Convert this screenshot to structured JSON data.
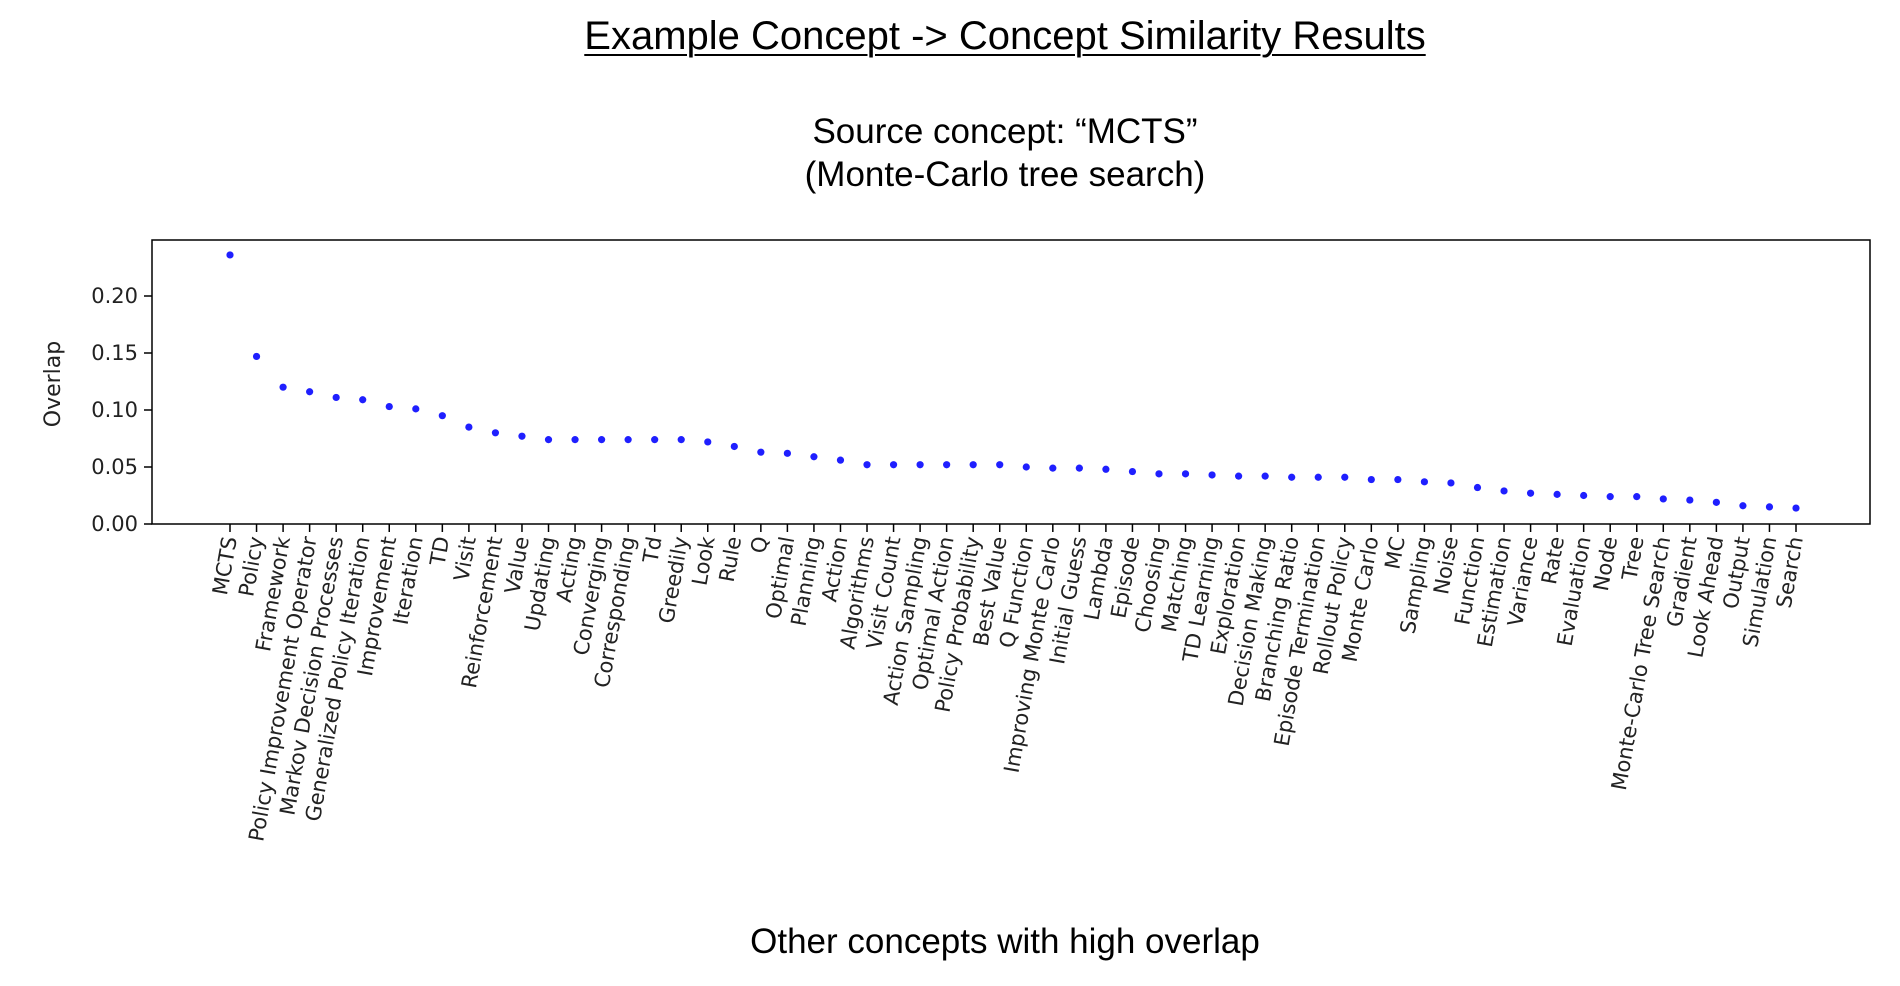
{
  "heading": {
    "title": "Example Concept -> Concept Similarity Results",
    "subtitle_line1": "Source concept: “MCTS”",
    "subtitle_line2": "(Monte-Carlo tree search)"
  },
  "colors": {
    "point": "#1f1fff",
    "axis": "#000000",
    "text": "#222222"
  },
  "chart_data": {
    "type": "scatter",
    "title": "Example Concept -> Concept Similarity Results",
    "subtitle": "Source concept: “MCTS” (Monte-Carlo tree search)",
    "xlabel": "Other concepts with high overlap",
    "ylabel": "Overlap",
    "ylim": [
      0,
      0.25
    ],
    "yticks": [
      0.0,
      0.05,
      0.1,
      0.15,
      0.2
    ],
    "ytick_labels": [
      "0.00",
      "0.05",
      "0.10",
      "0.15",
      "0.20"
    ],
    "grid": false,
    "categories": [
      "MCTS",
      "Policy",
      "Framework",
      "Policy Improvement Operator",
      "Markov Decision Processes",
      "Generalized Policy Iteration",
      "Improvement",
      "Iteration",
      "TD",
      "Visit",
      "Reinforcement",
      "Value",
      "Updating",
      "Acting",
      "Converging",
      "Corresponding",
      "Td",
      "Greedily",
      "Look",
      "Rule",
      "Q",
      "Optimal",
      "Planning",
      "Action",
      "Algorithms",
      "Visit Count",
      "Action Sampling",
      "Optimal Action",
      "Policy Probability",
      "Best Value",
      "Q Function",
      "Improving Monte Carlo",
      "Initial Guess",
      "Lambda",
      "Episode",
      "Choosing",
      "Matching",
      "TD Learning",
      "Exploration",
      "Decision Making",
      "Branching Ratio",
      "Episode Termination",
      "Rollout Policy",
      "Monte Carlo",
      "MC",
      "Sampling",
      "Noise",
      "Function",
      "Estimation",
      "Variance",
      "Rate",
      "Evaluation",
      "Node",
      "Tree",
      "Monte-Carlo Tree Search",
      "Gradient",
      "Look Ahead",
      "Output",
      "Simulation",
      "Search"
    ],
    "values": [
      0.236,
      0.147,
      0.12,
      0.116,
      0.111,
      0.109,
      0.103,
      0.101,
      0.095,
      0.085,
      0.08,
      0.077,
      0.074,
      0.074,
      0.074,
      0.074,
      0.074,
      0.074,
      0.072,
      0.068,
      0.063,
      0.062,
      0.059,
      0.056,
      0.052,
      0.052,
      0.052,
      0.052,
      0.052,
      0.052,
      0.05,
      0.049,
      0.049,
      0.048,
      0.046,
      0.044,
      0.044,
      0.043,
      0.042,
      0.042,
      0.041,
      0.041,
      0.041,
      0.039,
      0.039,
      0.037,
      0.036,
      0.032,
      0.029,
      0.027,
      0.026,
      0.025,
      0.024,
      0.024,
      0.022,
      0.021,
      0.019,
      0.016,
      0.015,
      0.014
    ]
  }
}
